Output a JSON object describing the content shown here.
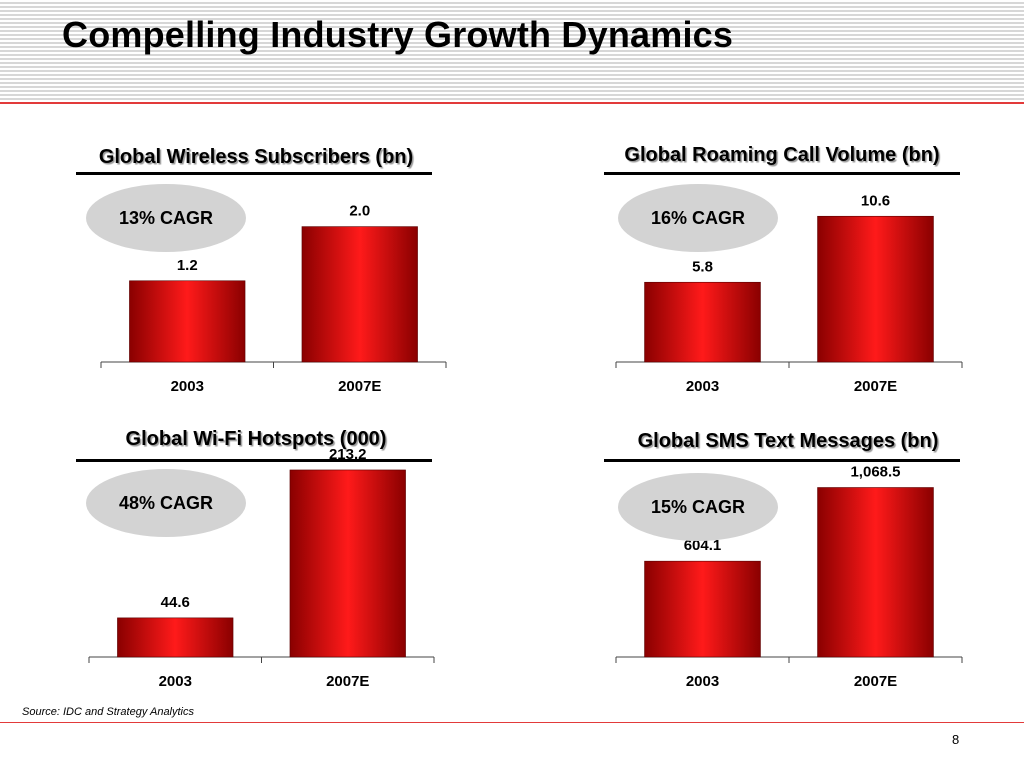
{
  "page": {
    "title": "Compelling Industry Growth Dynamics",
    "source": "Source: IDC and Strategy Analytics",
    "page_number": "8"
  },
  "colors": {
    "bar_center": "#ff1a1a",
    "bar_edge": "#8a0000",
    "oval": "#d3d3d3",
    "accent_rule": "#e23a3a"
  },
  "chart_data": [
    {
      "type": "bar",
      "title": "Global Wireless Subscribers (bn)",
      "categories": [
        "2003",
        "2007E"
      ],
      "values": [
        1.2,
        2.0
      ],
      "value_labels": [
        "1.2",
        "2.0"
      ],
      "annotation": "13% CAGR",
      "ylim": [
        0,
        2.6
      ],
      "xlabel": "",
      "ylabel": ""
    },
    {
      "type": "bar",
      "title": "Global Roaming Call Volume (bn)",
      "categories": [
        "2003",
        "2007E"
      ],
      "values": [
        5.8,
        10.6
      ],
      "value_labels": [
        "5.8",
        "10.6"
      ],
      "annotation": "16% CAGR",
      "ylim": [
        0,
        12.8
      ],
      "xlabel": "",
      "ylabel": ""
    },
    {
      "type": "bar",
      "title": "Global Wi-Fi Hotspots (000)",
      "categories": [
        "2003",
        "2007E"
      ],
      "values": [
        44.6,
        213.2
      ],
      "value_labels": [
        "44.6",
        "213.2"
      ],
      "annotation": "48% CAGR",
      "ylim": [
        0,
        220
      ],
      "xlabel": "",
      "ylabel": ""
    },
    {
      "type": "bar",
      "title": "Global SMS Text Messages (bn)",
      "categories": [
        "2003",
        "2007E"
      ],
      "values": [
        604.1,
        1068.5
      ],
      "value_labels": [
        "604.1",
        "1,068.5"
      ],
      "annotation": "15% CAGR",
      "ylim": [
        0,
        1160
      ],
      "xlabel": "",
      "ylabel": ""
    }
  ]
}
